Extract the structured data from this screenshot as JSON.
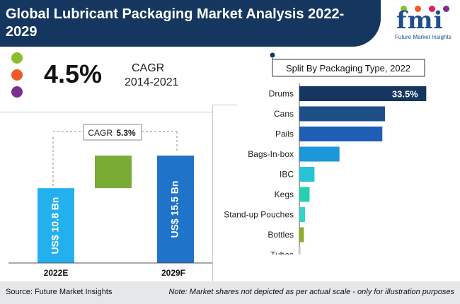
{
  "header": {
    "title": "Global Lubricant Packaging Market Analysis 2022-2029"
  },
  "logo": {
    "text": "fmi",
    "subtitle": "Future Market Insights"
  },
  "legend_dots": {
    "colors": [
      "#8cbd2c",
      "#ef5a26",
      "#7b2f8f"
    ]
  },
  "cagr": {
    "value": "4.5%",
    "label": "CAGR",
    "years": "2014-2021"
  },
  "waterfall": {
    "cagr_prefix": "CAGR",
    "cagr_value": "5.3%",
    "bars": [
      {
        "category": "2022E",
        "label": "US$ 10.8 Bn",
        "value": 10.8,
        "color": "#22b1ee"
      },
      {
        "category": "2029F",
        "label": "US$ 15.5 Bn",
        "value": 15.5,
        "color": "#1f73c9"
      }
    ],
    "increment_color": "#7aab35"
  },
  "chart_data": {
    "type": "bar",
    "orientation": "horizontal",
    "title": "Split By Packaging Type, 2022",
    "categories": [
      "Drums",
      "Cans",
      "Pails",
      "Bags-In-box",
      "IBC",
      "Kegs",
      "Stand-up Pouches",
      "Bottles",
      "Tubes"
    ],
    "values": [
      33.5,
      22.6,
      21.9,
      10.6,
      4.0,
      2.7,
      1.5,
      1.2,
      0.3
    ],
    "data_labels": [
      "33.5%",
      "",
      "",
      "",
      "",
      "",
      "",
      "",
      ""
    ],
    "colors": [
      "#14365f",
      "#1d4e86",
      "#1e5fb5",
      "#1c97d8",
      "#28c4d6",
      "#26cfb0",
      "#37d3c8",
      "#8cae2c",
      "#c8ccd6"
    ],
    "xlim": [
      0,
      34
    ]
  },
  "footer": {
    "source": "Source: Future Market Insights",
    "note": "Note: Market shares not depicted as per actual scale - only for illustration purposes"
  }
}
